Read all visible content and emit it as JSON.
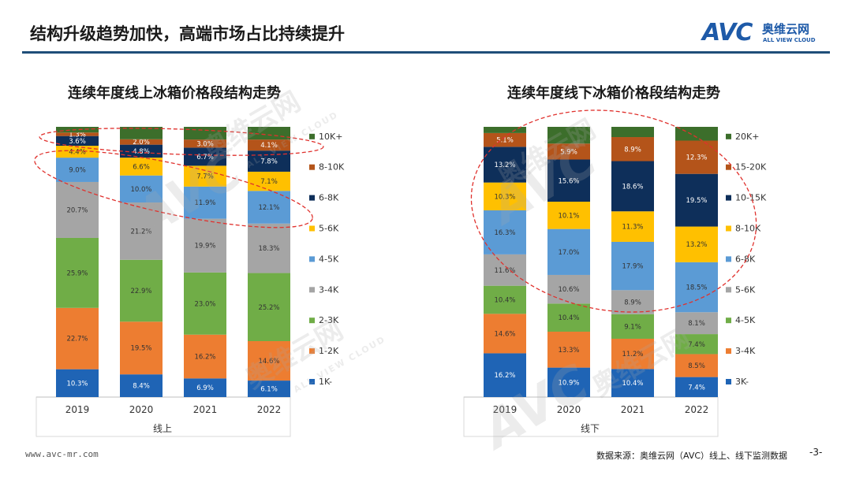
{
  "slide": {
    "title": "结构升级趋势加快，高端市场占比持续提升",
    "logo_text": "AVC",
    "logo_cn": "奥维云网",
    "logo_en": "ALL VIEW CLOUD",
    "footer_url": "www.avc-mr.com",
    "footer_source": "数据来源：奥维云网（AVC）线上、线下监测数据",
    "page_number": "-3-",
    "watermark_cn": "奥维云网",
    "watermark_en": "ALL VIEW CLOUD",
    "colors": {
      "header_line": "#1f4e79",
      "logo": "#1e5aa8",
      "highlight_ellipse": "#e0312d"
    }
  },
  "chart_data": [
    {
      "type": "bar",
      "stacked": true,
      "normalized": true,
      "title": "连续年度线上冰箱价格段结构走势",
      "xlabel": "线上",
      "categories": [
        "2019",
        "2020",
        "2021",
        "2022"
      ],
      "legend_position": "right",
      "series": [
        {
          "name": "1K-",
          "color": "#1f64b5",
          "values": [
            10.3,
            8.4,
            6.9,
            6.1
          ],
          "labels": [
            "10.3%",
            "8.4%",
            "6.9%",
            "6.1%"
          ]
        },
        {
          "name": "1-2K",
          "color": "#ed7d31",
          "values": [
            22.7,
            19.5,
            16.2,
            14.6
          ],
          "labels": [
            "22.7%",
            "19.5%",
            "16.2%",
            "14.6%"
          ]
        },
        {
          "name": "2-3K",
          "color": "#70ad47",
          "values": [
            25.9,
            22.9,
            23.0,
            25.2
          ],
          "labels": [
            "25.9%",
            "22.9%",
            "23.0%",
            "25.2%"
          ]
        },
        {
          "name": "3-4K",
          "color": "#a5a5a5",
          "values": [
            20.7,
            21.2,
            19.9,
            18.3
          ],
          "labels": [
            "20.7%",
            "21.2%",
            "19.9%",
            "18.3%"
          ]
        },
        {
          "name": "4-5K",
          "color": "#5b9bd5",
          "values": [
            9.0,
            10.0,
            11.9,
            12.1
          ],
          "labels": [
            "9.0%",
            "10.0%",
            "11.9%",
            "12.1%"
          ]
        },
        {
          "name": "5-6K",
          "color": "#ffc000",
          "values": [
            4.4,
            6.6,
            7.7,
            7.1
          ],
          "labels": [
            "4.4%",
            "6.6%",
            "7.7%",
            "7.1%"
          ]
        },
        {
          "name": "6-8K",
          "color": "#0e2f5a",
          "values": [
            3.6,
            4.8,
            6.7,
            7.8
          ],
          "labels": [
            "3.6%",
            "4.8%",
            "6.7%",
            "7.8%"
          ]
        },
        {
          "name": "8-10K",
          "color": "#b4541a",
          "values": [
            1.3,
            2.0,
            3.0,
            4.1
          ],
          "labels": [
            "1.3%",
            "2.0%",
            "3.0%",
            "4.1%"
          ]
        },
        {
          "name": "10K+",
          "color": "#3c6e2b",
          "values": [
            2.1,
            4.6,
            4.7,
            4.7
          ],
          "labels": [
            "",
            "",
            "",
            ""
          ]
        }
      ]
    },
    {
      "type": "bar",
      "stacked": true,
      "normalized": true,
      "title": "连续年度线下冰箱价格段结构走势",
      "xlabel": "线下",
      "categories": [
        "2019",
        "2020",
        "2021",
        "2022"
      ],
      "legend_position": "right",
      "series": [
        {
          "name": "3K-",
          "color": "#1f64b5",
          "values": [
            16.2,
            10.9,
            10.4,
            7.4
          ],
          "labels": [
            "16.2%",
            "10.9%",
            "10.4%",
            "7.4%"
          ]
        },
        {
          "name": "3-4K",
          "color": "#ed7d31",
          "values": [
            14.6,
            13.3,
            11.2,
            8.5
          ],
          "labels": [
            "14.6%",
            "13.3%",
            "11.2%",
            "8.5%"
          ]
        },
        {
          "name": "4-5K",
          "color": "#70ad47",
          "values": [
            10.4,
            10.4,
            9.1,
            7.4
          ],
          "labels": [
            "10.4%",
            "10.4%",
            "9.1%",
            "7.4%"
          ]
        },
        {
          "name": "5-6K",
          "color": "#a5a5a5",
          "values": [
            11.6,
            10.6,
            8.9,
            8.1
          ],
          "labels": [
            "11.6%",
            "10.6%",
            "8.9%",
            "8.1%"
          ]
        },
        {
          "name": "6-8K",
          "color": "#5b9bd5",
          "values": [
            16.3,
            17.0,
            17.9,
            18.5
          ],
          "labels": [
            "16.3%",
            "17.0%",
            "17.9%",
            "18.5%"
          ]
        },
        {
          "name": "8-10K",
          "color": "#ffc000",
          "values": [
            10.3,
            10.1,
            11.3,
            13.2
          ],
          "labels": [
            "10.3%",
            "10.1%",
            "11.3%",
            "13.2%"
          ]
        },
        {
          "name": "10-15K",
          "color": "#0e2f5a",
          "values": [
            13.2,
            15.6,
            18.6,
            19.5
          ],
          "labels": [
            "13.2%",
            "15.6%",
            "18.6%",
            "19.5%"
          ]
        },
        {
          "name": "15-20K",
          "color": "#b4541a",
          "values": [
            5.1,
            5.9,
            8.9,
            12.3
          ],
          "labels": [
            "5.1%",
            "5.9%",
            "8.9%",
            "12.3%"
          ]
        },
        {
          "name": "20K+",
          "color": "#3c6e2b",
          "values": [
            2.3,
            6.2,
            3.8,
            5.1
          ],
          "labels": [
            "",
            "",
            "",
            ""
          ]
        }
      ]
    }
  ]
}
